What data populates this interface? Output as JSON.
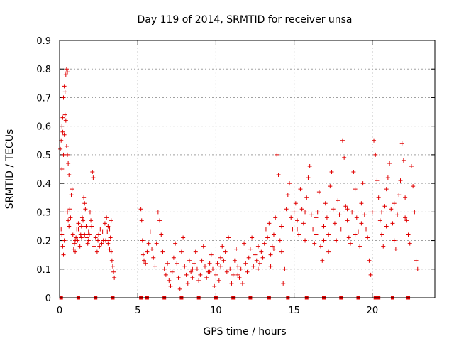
{
  "chart_data": {
    "type": "scatter",
    "title": "Day 119 of 2014, SRMTID for receiver unsa",
    "xlabel": "GPS time / hours",
    "ylabel": "SRMTID / TECUs",
    "xlim": [
      0,
      24
    ],
    "ylim": [
      0,
      0.9
    ],
    "x_ticks": [
      0,
      5,
      10,
      15,
      20
    ],
    "x_tick_labels": [
      "0",
      "5",
      "10",
      "15",
      "20"
    ],
    "y_ticks": [
      0,
      0.1,
      0.2,
      0.3,
      0.4,
      0.5,
      0.6,
      0.7,
      0.8,
      0.9
    ],
    "y_tick_labels": [
      "0",
      "0.1",
      "0.2",
      "0.3",
      "0.4",
      "0.5",
      "0.6",
      "0.7",
      "0.8",
      "0.9"
    ],
    "grid": true,
    "marker": "+",
    "color": "#e00000",
    "series": [
      {
        "name": "SRMTID",
        "points": [
          [
            0.05,
            0.52
          ],
          [
            0.1,
            0.55
          ],
          [
            0.15,
            0.6
          ],
          [
            0.2,
            0.63
          ],
          [
            0.25,
            0.7
          ],
          [
            0.3,
            0.74
          ],
          [
            0.35,
            0.72
          ],
          [
            0.4,
            0.78
          ],
          [
            0.45,
            0.8
          ],
          [
            0.5,
            0.79
          ],
          [
            0.2,
            0.58
          ],
          [
            0.3,
            0.57
          ],
          [
            0.4,
            0.62
          ],
          [
            0.45,
            0.53
          ],
          [
            0.5,
            0.5
          ],
          [
            0.55,
            0.47
          ],
          [
            0.6,
            0.43
          ],
          [
            0.35,
            0.64
          ],
          [
            0.25,
            0.5
          ],
          [
            0.15,
            0.45
          ],
          [
            0.1,
            0.24
          ],
          [
            0.15,
            0.22
          ],
          [
            0.2,
            0.18
          ],
          [
            0.25,
            0.15
          ],
          [
            0.3,
            0.2
          ],
          [
            0.5,
            0.3
          ],
          [
            0.55,
            0.27
          ],
          [
            0.6,
            0.25
          ],
          [
            0.65,
            0.31
          ],
          [
            0.7,
            0.28
          ],
          [
            0.75,
            0.36
          ],
          [
            0.8,
            0.38
          ],
          [
            0.85,
            0.22
          ],
          [
            0.9,
            0.17
          ],
          [
            0.95,
            0.19
          ],
          [
            1.0,
            0.16
          ],
          [
            1.05,
            0.21
          ],
          [
            1.1,
            0.24
          ],
          [
            1.15,
            0.2
          ],
          [
            1.2,
            0.26
          ],
          [
            1.25,
            0.23
          ],
          [
            1.3,
            0.18
          ],
          [
            1.35,
            0.22
          ],
          [
            1.4,
            0.25
          ],
          [
            1.45,
            0.28
          ],
          [
            1.5,
            0.27
          ],
          [
            1.55,
            0.35
          ],
          [
            1.6,
            0.33
          ],
          [
            1.65,
            0.31
          ],
          [
            1.7,
            0.25
          ],
          [
            1.75,
            0.21
          ],
          [
            1.8,
            0.19
          ],
          [
            1.85,
            0.2
          ],
          [
            1.9,
            0.22
          ],
          [
            1.95,
            0.3
          ],
          [
            2.0,
            0.27
          ],
          [
            2.05,
            0.25
          ],
          [
            2.1,
            0.44
          ],
          [
            2.15,
            0.42
          ],
          [
            2.2,
            0.18
          ],
          [
            2.3,
            0.21
          ],
          [
            2.4,
            0.16
          ],
          [
            2.5,
            0.22
          ],
          [
            2.6,
            0.24
          ],
          [
            2.7,
            0.19
          ],
          [
            2.8,
            0.2
          ],
          [
            2.9,
            0.26
          ],
          [
            3.0,
            0.28
          ],
          [
            3.05,
            0.23
          ],
          [
            3.1,
            0.25
          ],
          [
            3.15,
            0.2
          ],
          [
            3.2,
            0.17
          ],
          [
            3.25,
            0.21
          ],
          [
            3.3,
            0.27
          ],
          [
            3.35,
            0.13
          ],
          [
            3.4,
            0.11
          ],
          [
            3.45,
            0.09
          ],
          [
            3.5,
            0.07
          ],
          [
            1.0,
            0.2
          ],
          [
            1.2,
            0.24
          ],
          [
            1.4,
            0.21
          ],
          [
            1.6,
            0.22
          ],
          [
            2.45,
            0.2
          ],
          [
            2.55,
            0.18
          ],
          [
            2.75,
            0.23
          ],
          [
            2.95,
            0.2
          ],
          [
            3.1,
            0.19
          ],
          [
            3.2,
            0.24
          ],
          [
            3.3,
            0.16
          ],
          [
            1.85,
            0.23
          ],
          [
            5.2,
            0.31
          ],
          [
            5.25,
            0.27
          ],
          [
            5.3,
            0.2
          ],
          [
            5.35,
            0.15
          ],
          [
            5.4,
            0.13
          ],
          [
            5.5,
            0.12
          ],
          [
            5.6,
            0.16
          ],
          [
            5.7,
            0.19
          ],
          [
            5.8,
            0.23
          ],
          [
            5.9,
            0.17
          ],
          [
            6.0,
            0.14
          ],
          [
            6.1,
            0.11
          ],
          [
            6.2,
            0.19
          ],
          [
            6.3,
            0.3
          ],
          [
            6.4,
            0.27
          ],
          [
            6.5,
            0.22
          ],
          [
            6.6,
            0.16
          ],
          [
            6.7,
            0.1
          ],
          [
            6.8,
            0.08
          ],
          [
            6.9,
            0.12
          ],
          [
            7.0,
            0.06
          ],
          [
            7.1,
            0.04
          ],
          [
            7.2,
            0.09
          ],
          [
            7.3,
            0.14
          ],
          [
            7.4,
            0.19
          ],
          [
            7.5,
            0.12
          ],
          [
            7.6,
            0.07
          ],
          [
            7.7,
            0.03
          ],
          [
            7.8,
            0.16
          ],
          [
            7.9,
            0.21
          ],
          [
            8.0,
            0.11
          ],
          [
            8.1,
            0.08
          ],
          [
            8.2,
            0.05
          ],
          [
            8.3,
            0.13
          ],
          [
            8.4,
            0.09
          ],
          [
            8.5,
            0.07
          ],
          [
            8.6,
            0.12
          ],
          [
            8.7,
            0.16
          ],
          [
            8.8,
            0.1
          ],
          [
            8.9,
            0.06
          ],
          [
            9.0,
            0.08
          ],
          [
            9.1,
            0.13
          ],
          [
            9.2,
            0.18
          ],
          [
            9.3,
            0.11
          ],
          [
            9.4,
            0.07
          ],
          [
            9.5,
            0.09
          ],
          [
            9.6,
            0.12
          ],
          [
            9.7,
            0.15
          ],
          [
            9.8,
            0.1
          ],
          [
            9.9,
            0.04
          ],
          [
            10.0,
            0.08
          ],
          [
            10.1,
            0.12
          ],
          [
            10.2,
            0.06
          ],
          [
            10.3,
            0.11
          ],
          [
            10.4,
            0.18
          ],
          [
            10.5,
            0.13
          ],
          [
            10.6,
            0.16
          ],
          [
            10.7,
            0.09
          ],
          [
            10.8,
            0.21
          ],
          [
            10.9,
            0.1
          ],
          [
            11.0,
            0.05
          ],
          [
            11.1,
            0.08
          ],
          [
            11.2,
            0.13
          ],
          [
            11.3,
            0.17
          ],
          [
            11.4,
            0.11
          ],
          [
            11.5,
            0.07
          ],
          [
            11.6,
            0.1
          ],
          [
            11.7,
            0.05
          ],
          [
            11.8,
            0.19
          ],
          [
            11.9,
            0.12
          ],
          [
            12.0,
            0.09
          ],
          [
            12.1,
            0.14
          ],
          [
            12.2,
            0.17
          ],
          [
            12.3,
            0.21
          ],
          [
            12.4,
            0.11
          ],
          [
            12.5,
            0.15
          ],
          [
            12.6,
            0.13
          ],
          [
            12.7,
            0.18
          ],
          [
            12.8,
            0.12
          ],
          [
            12.9,
            0.16
          ],
          [
            13.0,
            0.14
          ],
          [
            13.1,
            0.19
          ],
          [
            13.2,
            0.24
          ],
          [
            13.3,
            0.21
          ],
          [
            13.4,
            0.26
          ],
          [
            13.5,
            0.15
          ],
          [
            13.6,
            0.18
          ],
          [
            13.7,
            0.22
          ],
          [
            13.8,
            0.28
          ],
          [
            13.9,
            0.5
          ],
          [
            14.0,
            0.43
          ],
          [
            14.1,
            0.2
          ],
          [
            14.2,
            0.25
          ],
          [
            14.3,
            0.05
          ],
          [
            14.4,
            0.1
          ],
          [
            14.5,
            0.31
          ],
          [
            14.6,
            0.36
          ],
          [
            14.7,
            0.4
          ],
          [
            14.8,
            0.28
          ],
          [
            14.9,
            0.24
          ],
          [
            15.0,
            0.3
          ],
          [
            15.1,
            0.33
          ],
          [
            15.2,
            0.27
          ],
          [
            15.3,
            0.22
          ],
          [
            15.4,
            0.38
          ],
          [
            15.5,
            0.31
          ],
          [
            15.6,
            0.26
          ],
          [
            15.7,
            0.2
          ],
          [
            15.8,
            0.35
          ],
          [
            15.9,
            0.42
          ],
          [
            16.0,
            0.46
          ],
          [
            16.1,
            0.29
          ],
          [
            16.2,
            0.24
          ],
          [
            16.3,
            0.19
          ],
          [
            16.4,
            0.22
          ],
          [
            16.5,
            0.3
          ],
          [
            16.6,
            0.37
          ],
          [
            16.7,
            0.18
          ],
          [
            16.8,
            0.13
          ],
          [
            16.9,
            0.25
          ],
          [
            17.0,
            0.33
          ],
          [
            17.1,
            0.28
          ],
          [
            17.2,
            0.22
          ],
          [
            17.3,
            0.39
          ],
          [
            17.4,
            0.44
          ],
          [
            17.5,
            0.31
          ],
          [
            17.6,
            0.26
          ],
          [
            17.7,
            0.2
          ],
          [
            17.8,
            0.34
          ],
          [
            17.9,
            0.29
          ],
          [
            18.0,
            0.24
          ],
          [
            18.1,
            0.55
          ],
          [
            18.2,
            0.49
          ],
          [
            18.3,
            0.32
          ],
          [
            18.4,
            0.27
          ],
          [
            18.5,
            0.21
          ],
          [
            18.6,
            0.19
          ],
          [
            18.7,
            0.3
          ],
          [
            18.8,
            0.44
          ],
          [
            18.9,
            0.38
          ],
          [
            19.0,
            0.28
          ],
          [
            19.1,
            0.23
          ],
          [
            19.2,
            0.18
          ],
          [
            19.3,
            0.33
          ],
          [
            19.4,
            0.4
          ],
          [
            19.5,
            0.29
          ],
          [
            19.6,
            0.24
          ],
          [
            19.7,
            0.21
          ],
          [
            19.8,
            0.13
          ],
          [
            19.9,
            0.08
          ],
          [
            20.0,
            0.3
          ],
          [
            20.1,
            0.55
          ],
          [
            20.2,
            0.5
          ],
          [
            20.3,
            0.41
          ],
          [
            20.4,
            0.35
          ],
          [
            20.5,
            0.27
          ],
          [
            20.6,
            0.22
          ],
          [
            20.7,
            0.18
          ],
          [
            20.8,
            0.32
          ],
          [
            20.9,
            0.38
          ],
          [
            21.0,
            0.42
          ],
          [
            21.1,
            0.47
          ],
          [
            21.2,
            0.31
          ],
          [
            21.3,
            0.26
          ],
          [
            21.4,
            0.2
          ],
          [
            21.5,
            0.17
          ],
          [
            21.6,
            0.29
          ],
          [
            21.7,
            0.36
          ],
          [
            21.8,
            0.41
          ],
          [
            21.9,
            0.54
          ],
          [
            22.0,
            0.48
          ],
          [
            22.1,
            0.35
          ],
          [
            22.2,
            0.27
          ],
          [
            22.3,
            0.22
          ],
          [
            22.4,
            0.19
          ],
          [
            22.5,
            0.46
          ],
          [
            22.6,
            0.39
          ],
          [
            22.7,
            0.3
          ],
          [
            22.8,
            0.13
          ],
          [
            22.9,
            0.1
          ],
          [
            13.5,
            0.11
          ],
          [
            13.7,
            0.17
          ],
          [
            14.2,
            0.16
          ],
          [
            15.2,
            0.24
          ],
          [
            16.4,
            0.28
          ],
          [
            17.2,
            0.16
          ],
          [
            18.4,
            0.31
          ],
          [
            19.3,
            0.26
          ],
          [
            20.6,
            0.3
          ],
          [
            21.4,
            0.33
          ],
          [
            22.1,
            0.28
          ],
          [
            15.7,
            0.3
          ],
          [
            16.9,
            0.2
          ],
          [
            18.9,
            0.22
          ],
          [
            20.9,
            0.25
          ],
          [
            8.5,
            0.1
          ],
          [
            9.6,
            0.09
          ],
          [
            10.3,
            0.14
          ],
          [
            11.4,
            0.08
          ],
          [
            12.7,
            0.1
          ]
        ]
      }
    ],
    "baseline_markers": {
      "y": 0,
      "x": [
        0.1,
        1.2,
        2.3,
        3.4,
        5.2,
        5.6,
        6.7,
        7.8,
        8.9,
        10.0,
        11.1,
        12.2,
        13.4,
        14.6,
        15.8,
        16.9,
        18.0,
        19.1,
        20.2,
        20.4,
        21.3,
        22.3
      ]
    }
  }
}
